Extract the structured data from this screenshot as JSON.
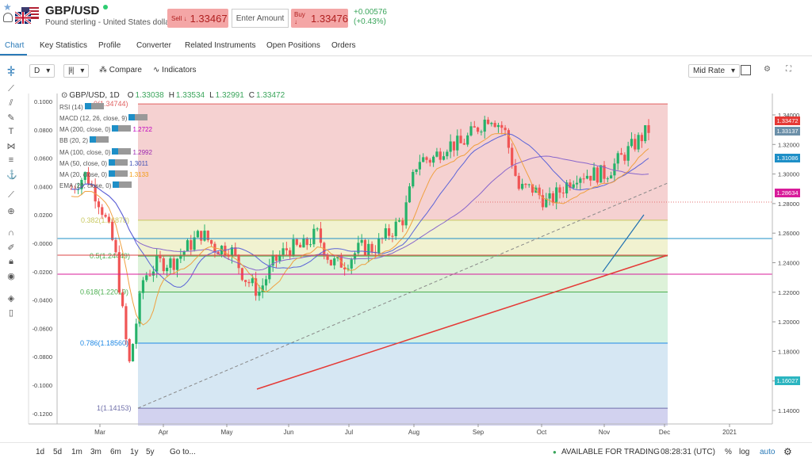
{
  "header": {
    "symbol": "GBP/USD",
    "subtitle": "Pound sterling - United States dollar",
    "sell_label": "Sell ↓",
    "sell_price": "1.33467",
    "amount_placeholder": "Enter Amount",
    "buy_label": "Buy ↓",
    "buy_price": "1.33476",
    "change_abs": "+0.00576",
    "change_pct": "(+0.43%)"
  },
  "tabs": [
    "Chart",
    "Key Statistics",
    "Profile",
    "Converter",
    "Related Instruments",
    "Open Positions",
    "Orders"
  ],
  "toolbar": {
    "interval": "D",
    "compare": "Compare",
    "indicators": "Indicators",
    "rate_mode": "Mid Rate"
  },
  "chart_info": {
    "label": "GBP/USD, 1D",
    "o_label": "O",
    "o": "1.33038",
    "h_label": "H",
    "h": "1.33534",
    "l_label": "L",
    "l": "1.32991",
    "c_label": "C",
    "c": "1.33472"
  },
  "indicators": [
    {
      "name": "RSI (14)",
      "value": ""
    },
    {
      "name": "MACD (12, 26, close, 9)",
      "value": ""
    },
    {
      "name": "MA (200, close, 0)",
      "value": "1.2722"
    },
    {
      "name": "BB (20, 2)",
      "value": ""
    },
    {
      "name": "MA (100, close, 0)",
      "value": "1.2992"
    },
    {
      "name": "MA (50, close, 0)",
      "value": "1.3011"
    },
    {
      "name": "MA (20, close, 0)",
      "value": "1.3133"
    },
    {
      "name": "EMA (20, close, 0)",
      "value": ""
    }
  ],
  "fib_labels": [
    "0(1.34744)",
    "0.382(1.26878)",
    "0.5(1.24449)",
    "0.618(1.22019)",
    "0.786(1.18560)",
    "1(1.14153)"
  ],
  "left_axis": [
    "0.1000",
    "0.0800",
    "0.0600",
    "0.0400",
    "0.0200",
    "-0.0000",
    "-0.0200",
    "-0.0400",
    "-0.0600",
    "-0.0800",
    "-0.1000",
    "-0.1200"
  ],
  "right_axis": [
    "1.34000",
    "1.32000",
    "1.30000",
    "1.28000",
    "1.26000",
    "1.24000",
    "1.22000",
    "1.20000",
    "1.18000",
    "1.16000",
    "1.14000"
  ],
  "price_tags": [
    {
      "value": "1.33472",
      "color": "#e53935"
    },
    {
      "value": "1.33137",
      "color": "#6b8fa8"
    },
    {
      "value": "1.31086",
      "color": "#1e8fc7"
    },
    {
      "value": "1.28634",
      "color": "#d81b9a"
    },
    {
      "value": "1.16027",
      "color": "#2bb5c0"
    }
  ],
  "months": [
    "Mar",
    "Apr",
    "May",
    "Jun",
    "Jul",
    "Aug",
    "Sep",
    "Oct",
    "Nov",
    "Dec",
    "2021"
  ],
  "bottom": {
    "ranges": [
      "1d",
      "5d",
      "1m",
      "3m",
      "6m",
      "1y",
      "5y"
    ],
    "goto": "Go to...",
    "trading": "AVAILABLE FOR TRADING",
    "time": "08:28:31 (UTC)",
    "pct": "%",
    "log": "log",
    "auto": "auto"
  },
  "chart_data": {
    "type": "candlestick",
    "symbol": "GBP/USD",
    "timeframe": "1D",
    "ohlc_last": {
      "open": 1.33038,
      "high": 1.33534,
      "low": 1.32991,
      "close": 1.33472
    },
    "x_range": [
      "Feb",
      "2021"
    ],
    "y_range": [
      1.135,
      1.35
    ],
    "fibonacci": [
      {
        "level": 0,
        "price": 1.34744
      },
      {
        "level": 0.382,
        "price": 1.26878
      },
      {
        "level": 0.5,
        "price": 1.24449
      },
      {
        "level": 0.618,
        "price": 1.22019
      },
      {
        "level": 0.786,
        "price": 1.1856
      },
      {
        "level": 1,
        "price": 1.14153
      }
    ],
    "closes_weekly": [
      1.29,
      1.3,
      1.28,
      1.25,
      1.17,
      1.23,
      1.24,
      1.24,
      1.25,
      1.26,
      1.25,
      1.25,
      1.23,
      1.22,
      1.24,
      1.25,
      1.25,
      1.26,
      1.24,
      1.24,
      1.25,
      1.25,
      1.26,
      1.27,
      1.31,
      1.31,
      1.32,
      1.32,
      1.33,
      1.34,
      1.33,
      1.29,
      1.29,
      1.28,
      1.29,
      1.3,
      1.3,
      1.3,
      1.31,
      1.32,
      1.33
    ]
  }
}
